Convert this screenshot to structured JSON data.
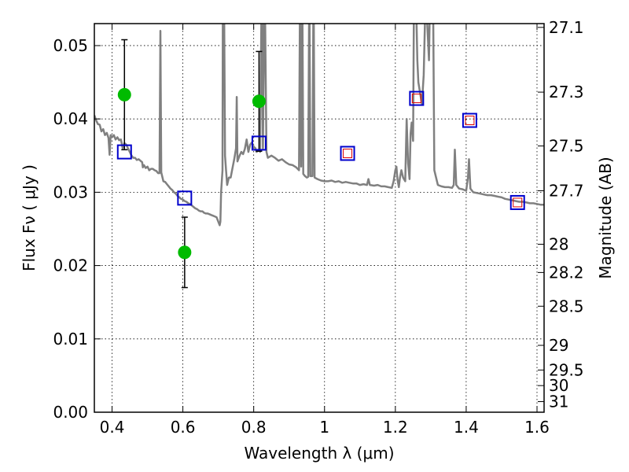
{
  "chart_data": {
    "type": "scatter",
    "xlabel": "Wavelength  λ (μm)",
    "ylabel": "Flux  Fν  ( μJy )",
    "y2label": "Magnitude (AB)",
    "xlim": [
      0.35,
      1.62
    ],
    "ylim": [
      0.0,
      0.053
    ],
    "x_ticks": [
      "0.4",
      "0.6",
      "0.8",
      "1",
      "1.2",
      "1.4",
      "1.6"
    ],
    "x_tick_values": [
      0.4,
      0.6,
      0.8,
      1.0,
      1.2,
      1.4,
      1.6
    ],
    "y_ticks": [
      "0.00",
      "0.01",
      "0.02",
      "0.03",
      "0.04",
      "0.05"
    ],
    "y_tick_values": [
      0.0,
      0.01,
      0.02,
      0.03,
      0.04,
      0.05
    ],
    "y2_ticks": [
      "27.1",
      "27.3",
      "27.5",
      "27.7",
      "28",
      "28.2",
      "28.5",
      "29",
      "29.5",
      "30",
      "31"
    ],
    "y2_tick_values": [
      27.1,
      27.3,
      27.5,
      27.7,
      28.0,
      28.2,
      28.5,
      29.0,
      29.5,
      30.0,
      31.0
    ],
    "grid": true,
    "colors": {
      "spectrum": "#808080",
      "observed": "#00bb00",
      "model_box": "#0000cc",
      "model_inner": "#dd0000",
      "errorbar": "#000000"
    },
    "series": [
      {
        "type": "line",
        "points": [
          [
            0.35,
            0.0405
          ],
          [
            0.355,
            0.0398
          ],
          [
            0.36,
            0.0393
          ],
          [
            0.365,
            0.0392
          ],
          [
            0.37,
            0.0383
          ],
          [
            0.375,
            0.0386
          ],
          [
            0.38,
            0.0378
          ],
          [
            0.385,
            0.0381
          ],
          [
            0.39,
            0.0374
          ],
          [
            0.393,
            0.0351
          ],
          [
            0.396,
            0.0378
          ],
          [
            0.4,
            0.0375
          ],
          [
            0.405,
            0.0378
          ],
          [
            0.41,
            0.0372
          ],
          [
            0.415,
            0.0375
          ],
          [
            0.42,
            0.0371
          ],
          [
            0.425,
            0.0372
          ],
          [
            0.43,
            0.036
          ],
          [
            0.435,
            0.0367
          ],
          [
            0.44,
            0.0365
          ],
          [
            0.445,
            0.036
          ],
          [
            0.45,
            0.0355
          ],
          [
            0.455,
            0.035
          ],
          [
            0.46,
            0.0347
          ],
          [
            0.465,
            0.0347
          ],
          [
            0.47,
            0.0344
          ],
          [
            0.475,
            0.0345
          ],
          [
            0.48,
            0.0343
          ],
          [
            0.485,
            0.0341
          ],
          [
            0.487,
            0.0334
          ],
          [
            0.49,
            0.0337
          ],
          [
            0.495,
            0.0333
          ],
          [
            0.5,
            0.0335
          ],
          [
            0.505,
            0.033
          ],
          [
            0.51,
            0.0332
          ],
          [
            0.515,
            0.0332
          ],
          [
            0.52,
            0.033
          ],
          [
            0.525,
            0.0329
          ],
          [
            0.53,
            0.0326
          ],
          [
            0.534,
            0.0326
          ],
          [
            0.5365,
            0.052
          ],
          [
            0.539,
            0.0327
          ],
          [
            0.545,
            0.0315
          ],
          [
            0.55,
            0.0314
          ],
          [
            0.555,
            0.0311
          ],
          [
            0.56,
            0.0308
          ],
          [
            0.565,
            0.0305
          ],
          [
            0.57,
            0.0303
          ],
          [
            0.575,
            0.03
          ],
          [
            0.58,
            0.0298
          ],
          [
            0.585,
            0.0295
          ],
          [
            0.59,
            0.0293
          ],
          [
            0.595,
            0.0291
          ],
          [
            0.6,
            0.029
          ],
          [
            0.605,
            0.0288
          ],
          [
            0.61,
            0.0287
          ],
          [
            0.615,
            0.0285
          ],
          [
            0.62,
            0.0284
          ],
          [
            0.625,
            0.0282
          ],
          [
            0.63,
            0.028
          ],
          [
            0.635,
            0.0278
          ],
          [
            0.64,
            0.0277
          ],
          [
            0.645,
            0.0275
          ],
          [
            0.65,
            0.0274
          ],
          [
            0.655,
            0.0274
          ],
          [
            0.66,
            0.0272
          ],
          [
            0.665,
            0.0271
          ],
          [
            0.67,
            0.0271
          ],
          [
            0.675,
            0.027
          ],
          [
            0.68,
            0.0269
          ],
          [
            0.685,
            0.0268
          ],
          [
            0.69,
            0.0267
          ],
          [
            0.695,
            0.0266
          ],
          [
            0.7,
            0.026
          ],
          [
            0.704,
            0.0255
          ],
          [
            0.706,
            0.026
          ],
          [
            0.708,
            0.03
          ],
          [
            0.712,
            0.033
          ],
          [
            0.713,
            0.06
          ],
          [
            0.716,
            0.06
          ],
          [
            0.719,
            0.035
          ],
          [
            0.722,
            0.033
          ],
          [
            0.725,
            0.031
          ],
          [
            0.73,
            0.032
          ],
          [
            0.735,
            0.032
          ],
          [
            0.74,
            0.0333
          ],
          [
            0.745,
            0.0345
          ],
          [
            0.75,
            0.036
          ],
          [
            0.752,
            0.043
          ],
          [
            0.754,
            0.0342
          ],
          [
            0.76,
            0.035
          ],
          [
            0.765,
            0.0355
          ],
          [
            0.77,
            0.0352
          ],
          [
            0.775,
            0.0359
          ],
          [
            0.78,
            0.0372
          ],
          [
            0.785,
            0.0355
          ],
          [
            0.79,
            0.0365
          ],
          [
            0.795,
            0.0368
          ],
          [
            0.8,
            0.0362
          ],
          [
            0.805,
            0.036
          ],
          [
            0.808,
            0.0355
          ],
          [
            0.811,
            0.0356
          ],
          [
            0.815,
            0.0358
          ],
          [
            0.818,
            0.0355
          ],
          [
            0.823,
            0.06
          ],
          [
            0.826,
            0.036
          ],
          [
            0.831,
            0.06
          ],
          [
            0.836,
            0.0355
          ],
          [
            0.84,
            0.0347
          ],
          [
            0.85,
            0.035
          ],
          [
            0.86,
            0.0347
          ],
          [
            0.87,
            0.0343
          ],
          [
            0.88,
            0.0345
          ],
          [
            0.89,
            0.0341
          ],
          [
            0.9,
            0.0338
          ],
          [
            0.91,
            0.0337
          ],
          [
            0.92,
            0.0334
          ],
          [
            0.928,
            0.033
          ],
          [
            0.931,
            0.06
          ],
          [
            0.934,
            0.0335
          ],
          [
            0.937,
            0.06
          ],
          [
            0.94,
            0.0325
          ],
          [
            0.945,
            0.0322
          ],
          [
            0.95,
            0.032
          ],
          [
            0.954,
            0.0321
          ],
          [
            0.957,
            0.06
          ],
          [
            0.96,
            0.0322
          ],
          [
            0.966,
            0.0322
          ],
          [
            0.969,
            0.06
          ],
          [
            0.972,
            0.032
          ],
          [
            0.98,
            0.0318
          ],
          [
            0.99,
            0.0316
          ],
          [
            1.0,
            0.0315
          ],
          [
            1.01,
            0.0315
          ],
          [
            1.02,
            0.0316
          ],
          [
            1.03,
            0.0314
          ],
          [
            1.04,
            0.0315
          ],
          [
            1.05,
            0.0313
          ],
          [
            1.06,
            0.0314
          ],
          [
            1.07,
            0.0313
          ],
          [
            1.08,
            0.0312
          ],
          [
            1.09,
            0.0312
          ],
          [
            1.1,
            0.031
          ],
          [
            1.11,
            0.0311
          ],
          [
            1.12,
            0.031
          ],
          [
            1.124,
            0.0318
          ],
          [
            1.128,
            0.031
          ],
          [
            1.14,
            0.0309
          ],
          [
            1.15,
            0.031
          ],
          [
            1.16,
            0.0308
          ],
          [
            1.17,
            0.0308
          ],
          [
            1.18,
            0.0307
          ],
          [
            1.19,
            0.0306
          ],
          [
            1.195,
            0.0315
          ],
          [
            1.2,
            0.033
          ],
          [
            1.203,
            0.0335
          ],
          [
            1.206,
            0.0318
          ],
          [
            1.21,
            0.0307
          ],
          [
            1.213,
            0.032
          ],
          [
            1.217,
            0.033
          ],
          [
            1.222,
            0.032
          ],
          [
            1.228,
            0.0315
          ],
          [
            1.232,
            0.04
          ],
          [
            1.236,
            0.034
          ],
          [
            1.24,
            0.0318
          ],
          [
            1.243,
            0.038
          ],
          [
            1.246,
            0.0395
          ],
          [
            1.25,
            0.037
          ],
          [
            1.253,
            0.06
          ],
          [
            1.257,
            0.06
          ],
          [
            1.262,
            0.048
          ],
          [
            1.265,
            0.045
          ],
          [
            1.275,
            0.042
          ],
          [
            1.28,
            0.046
          ],
          [
            1.285,
            0.056
          ],
          [
            1.29,
            0.053
          ],
          [
            1.295,
            0.048
          ],
          [
            1.299,
            0.06
          ],
          [
            1.306,
            0.06
          ],
          [
            1.31,
            0.033
          ],
          [
            1.32,
            0.031
          ],
          [
            1.33,
            0.0308
          ],
          [
            1.34,
            0.0307
          ],
          [
            1.35,
            0.0307
          ],
          [
            1.36,
            0.0306
          ],
          [
            1.365,
            0.031
          ],
          [
            1.368,
            0.0358
          ],
          [
            1.372,
            0.031
          ],
          [
            1.38,
            0.0305
          ],
          [
            1.39,
            0.0304
          ],
          [
            1.4,
            0.0302
          ],
          [
            1.405,
            0.032
          ],
          [
            1.408,
            0.0345
          ],
          [
            1.412,
            0.0305
          ],
          [
            1.42,
            0.03
          ],
          [
            1.43,
            0.0299
          ],
          [
            1.44,
            0.0298
          ],
          [
            1.45,
            0.0297
          ],
          [
            1.46,
            0.0296
          ],
          [
            1.47,
            0.0296
          ],
          [
            1.48,
            0.0295
          ],
          [
            1.49,
            0.0294
          ],
          [
            1.5,
            0.0293
          ],
          [
            1.51,
            0.0291
          ],
          [
            1.52,
            0.029
          ],
          [
            1.53,
            0.0289
          ],
          [
            1.54,
            0.0288
          ],
          [
            1.55,
            0.0287
          ],
          [
            1.56,
            0.0287
          ],
          [
            1.57,
            0.0286
          ],
          [
            1.58,
            0.0285
          ],
          [
            1.59,
            0.0285
          ],
          [
            1.6,
            0.0284
          ],
          [
            1.61,
            0.0283
          ],
          [
            1.62,
            0.0283
          ]
        ]
      },
      {
        "type": "errorbar",
        "points": [
          {
            "x": 0.435,
            "y": 0.0433,
            "ylo": 0.0358,
            "yhi": 0.0508
          },
          {
            "x": 0.605,
            "y": 0.0218,
            "ylo": 0.017,
            "yhi": 0.0266
          },
          {
            "x": 0.815,
            "y": 0.0424,
            "ylo": 0.0356,
            "yhi": 0.0492
          }
        ]
      },
      {
        "type": "scatter",
        "marker": "open-square",
        "points": [
          [
            0.435,
            0.0355
          ],
          [
            0.605,
            0.0292
          ],
          [
            0.815,
            0.0367
          ],
          [
            1.065,
            0.0353
          ],
          [
            1.26,
            0.0428
          ],
          [
            1.41,
            0.0398
          ],
          [
            1.545,
            0.0286
          ]
        ]
      },
      {
        "type": "scatter",
        "marker": "inner-square",
        "points": [
          [
            1.065,
            0.0353
          ],
          [
            1.26,
            0.0428
          ],
          [
            1.41,
            0.0398
          ],
          [
            1.545,
            0.0286
          ]
        ]
      }
    ]
  }
}
